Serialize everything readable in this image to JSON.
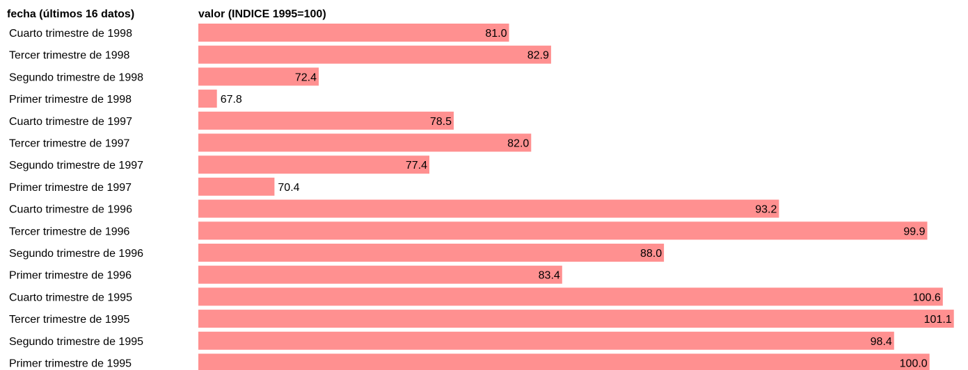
{
  "chart_data": {
    "type": "bar",
    "orientation": "horizontal",
    "header_category": "fecha (últimos 16 datos)",
    "header_value": "valor (INDICE 1995=100)",
    "categories": [
      "Cuarto trimestre de 1998",
      "Tercer trimestre de 1998",
      "Segundo trimestre de 1998",
      "Primer trimestre de 1998",
      "Cuarto trimestre de 1997",
      "Tercer trimestre de 1997",
      "Segundo trimestre de 1997",
      "Primer trimestre de 1997",
      "Cuarto trimestre de 1996",
      "Tercer trimestre de 1996",
      "Segundo trimestre de 1996",
      "Primer trimestre de 1996",
      "Cuarto trimestre de 1995",
      "Tercer trimestre de 1995",
      "Segundo trimestre de 1995",
      "Primer trimestre de 1995"
    ],
    "values": [
      81.0,
      82.9,
      72.4,
      67.8,
      78.5,
      82.0,
      77.4,
      70.4,
      93.2,
      99.9,
      88.0,
      83.4,
      100.6,
      101.1,
      98.4,
      100.0
    ],
    "value_labels": [
      "81.0",
      "82.9",
      "72.4",
      "67.8",
      "78.5",
      "82.0",
      "77.4",
      "70.4",
      "93.2",
      "99.9",
      "88.0",
      "83.4",
      "100.6",
      "101.1",
      "98.4",
      "100.0"
    ],
    "bar_color": "#ff9090",
    "grid": false,
    "legend": "none"
  }
}
